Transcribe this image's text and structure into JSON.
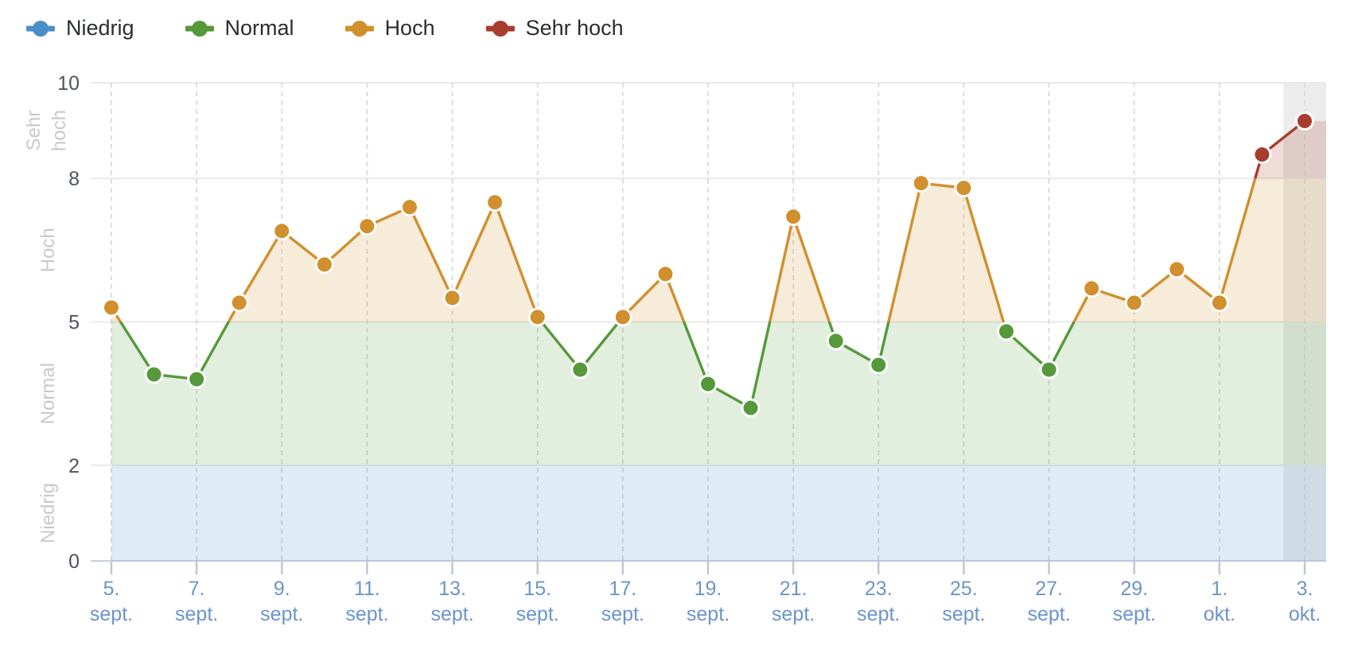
{
  "legend": {
    "items": [
      {
        "label": "Niedrig",
        "color": "#4C8FC7"
      },
      {
        "label": "Normal",
        "color": "#55993B"
      },
      {
        "label": "Hoch",
        "color": "#D0902E"
      },
      {
        "label": "Sehr hoch",
        "color": "#A73D2F"
      }
    ]
  },
  "chart_data": {
    "type": "line",
    "title": "",
    "xlabel": "",
    "ylabel": "",
    "ylim": [
      0,
      10
    ],
    "yticks": [
      0,
      2,
      5,
      8,
      10
    ],
    "grid": "horizontal solid + vertical dashed at labeled dates",
    "legend_position": "top-left",
    "n_points": 29,
    "values": [
      5.3,
      3.9,
      3.8,
      5.4,
      6.9,
      6.2,
      7.0,
      7.4,
      5.5,
      7.5,
      5.1,
      4.0,
      5.1,
      6.0,
      3.7,
      3.2,
      7.2,
      4.6,
      4.1,
      7.9,
      7.8,
      4.8,
      4.0,
      5.7,
      5.4,
      6.1,
      5.4,
      8.5,
      9.2
    ],
    "x_tick_every": 2,
    "x_ticks": [
      {
        "top": "5.",
        "bottom": "sept."
      },
      {
        "top": "7.",
        "bottom": "sept."
      },
      {
        "top": "9.",
        "bottom": "sept."
      },
      {
        "top": "11.",
        "bottom": "sept."
      },
      {
        "top": "13.",
        "bottom": "sept."
      },
      {
        "top": "15.",
        "bottom": "sept."
      },
      {
        "top": "17.",
        "bottom": "sept."
      },
      {
        "top": "19.",
        "bottom": "sept."
      },
      {
        "top": "21.",
        "bottom": "sept."
      },
      {
        "top": "23.",
        "bottom": "sept."
      },
      {
        "top": "25.",
        "bottom": "sept."
      },
      {
        "top": "27.",
        "bottom": "sept."
      },
      {
        "top": "29.",
        "bottom": "sept."
      },
      {
        "top": "1.",
        "bottom": "okt."
      },
      {
        "top": "3.",
        "bottom": "okt."
      }
    ],
    "zones": [
      {
        "label": "Niedrig",
        "axis_label_lines": [
          "Niedrig"
        ],
        "from": 0,
        "to": 2,
        "color": "#4C8FC7",
        "fill_opacity": 0.18
      },
      {
        "label": "Normal",
        "axis_label_lines": [
          "Normal"
        ],
        "from": 2,
        "to": 5,
        "color": "#55993B",
        "fill_opacity": 0.17
      },
      {
        "label": "Hoch",
        "axis_label_lines": [
          "Hoch"
        ],
        "from": 5,
        "to": 8,
        "color": "#D0902E",
        "fill_opacity": 0.18
      },
      {
        "label": "Sehr hoch",
        "axis_label_lines": [
          "Sehr",
          "hoch"
        ],
        "from": 8,
        "to": 10,
        "color": "#A73D2F",
        "fill_opacity": 0.18
      }
    ],
    "highlight_band": {
      "from_index": 27.5,
      "color": "#ECECEC"
    }
  }
}
